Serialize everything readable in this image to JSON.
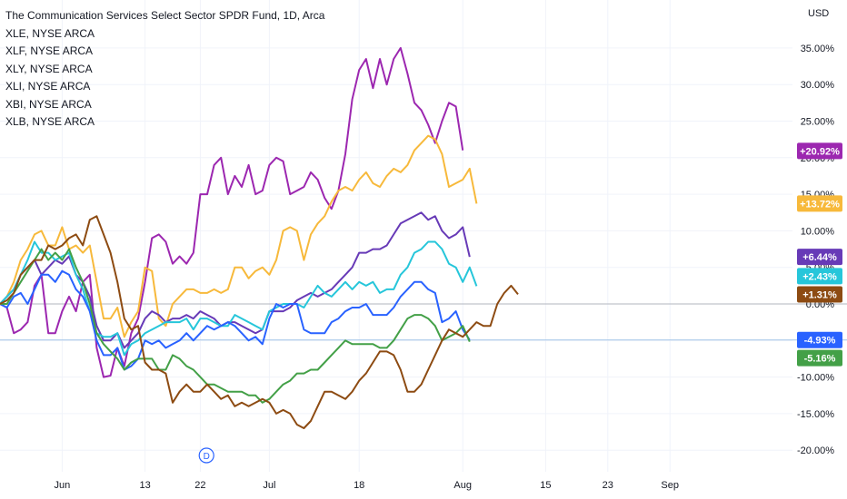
{
  "chart_data": {
    "type": "line",
    "title": "The Communication Services Select Sector SPDR Fund, 1D, Arca",
    "comparisons": [
      "XLE, NYSE ARCA",
      "XLF, NYSE ARCA",
      "XLY, NYSE ARCA",
      "XLI, NYSE ARCA",
      "XBI, NYSE ARCA",
      "XLB, NYSE ARCA"
    ],
    "currency": "USD",
    "y_ticks": [
      "35.00%",
      "30.00%",
      "25.00%",
      "20.00%",
      "15.00%",
      "10.00%",
      "5.00%",
      "0.00%",
      "-5.00%",
      "-10.00%",
      "-15.00%",
      "-20.00%"
    ],
    "y_tick_values": [
      35,
      30,
      25,
      20,
      15,
      10,
      5,
      0,
      -5,
      -10,
      -15,
      -20
    ],
    "ylim": [
      -22,
      38
    ],
    "x_ticks": [
      "Jun",
      "13",
      "22",
      "Jul",
      "18",
      "Aug",
      "15",
      "23",
      "Sep"
    ],
    "x_tick_index": [
      9,
      21,
      29,
      39,
      52,
      67,
      79,
      88,
      97
    ],
    "x_range": [
      0,
      113
    ],
    "event_marker": "D",
    "event_index": 27,
    "colors": {
      "grid": "#f0f3fa",
      "zero_line": "#b2b5be",
      "ref_line": "#9fc3e7"
    },
    "series": [
      {
        "color": "#9c27b0",
        "badge": "+20.92%",
        "last": 20.92,
        "values": [
          0,
          -0.5,
          -4,
          -3.5,
          -2.5,
          2.5,
          4,
          -4,
          -4,
          -1,
          1,
          -1,
          3,
          4,
          -6,
          -10,
          -9.8,
          -6,
          -8.5,
          -4,
          -2,
          3,
          9,
          9.5,
          8.5,
          5.5,
          6.5,
          5.5,
          7,
          15,
          15,
          19,
          20,
          15,
          17.5,
          16,
          19,
          15,
          15.5,
          19,
          20,
          19.5,
          15,
          15.5,
          16,
          18,
          17,
          14.5,
          13,
          15.5,
          20.5,
          28,
          32,
          33.5,
          29.5,
          33.5,
          30,
          33.5,
          35,
          31.5,
          27.5,
          26.5,
          24.5,
          22,
          25,
          27.5,
          27,
          21
        ]
      },
      {
        "color": "#f7b93b",
        "badge": "+13.72%",
        "last": 13.72,
        "values": [
          0,
          1,
          3,
          6,
          7.5,
          9.5,
          10,
          8,
          8,
          10.5,
          7.5,
          8,
          7,
          8,
          3,
          -2,
          -2,
          -0.5,
          -4.5,
          -2.5,
          -1,
          5,
          4.5,
          -2,
          -3,
          0,
          1,
          2,
          2,
          1.5,
          1.5,
          2,
          1.5,
          2,
          5,
          5,
          3.5,
          4.5,
          5,
          4,
          6,
          10,
          10.5,
          10,
          6,
          9.5,
          11,
          12,
          14,
          15.5,
          16,
          15.5,
          17,
          18,
          16.5,
          16,
          17.5,
          18.5,
          18,
          19,
          21,
          22,
          23,
          22.5,
          20.5,
          16,
          16.5,
          17,
          18.5,
          13.72
        ]
      },
      {
        "color": "#673ab7",
        "badge": "+6.44%",
        "last": 6.44,
        "values": [
          0,
          1,
          2,
          4,
          5,
          6,
          4,
          5,
          6,
          5.5,
          6.5,
          4,
          3,
          1,
          -3,
          -5,
          -5,
          -4,
          -6,
          -5,
          -4,
          -2,
          -1,
          -1.5,
          -2.5,
          -2,
          -2,
          -1.5,
          -2,
          -1,
          -1.5,
          -2,
          -3,
          -2.5,
          -2.5,
          -3,
          -3.5,
          -4,
          -3.5,
          -1,
          -1,
          -1,
          -0.5,
          0.5,
          1,
          1.5,
          1,
          1.5,
          2,
          3,
          4,
          5,
          7,
          7,
          7.5,
          7.5,
          8,
          9.5,
          11,
          11.5,
          12,
          12.5,
          11.5,
          12,
          10,
          9,
          9.5,
          10.5,
          6.44
        ]
      },
      {
        "color": "#26c6da",
        "badge": "+2.43%",
        "last": 2.43,
        "values": [
          0,
          1,
          2,
          4,
          6,
          8.5,
          7,
          7,
          6,
          6.5,
          7,
          4,
          2,
          -1,
          -4,
          -4.5,
          -4.5,
          -4,
          -7,
          -5.5,
          -5,
          -4,
          -3.5,
          -3,
          -2.5,
          -2.5,
          -2.5,
          -2,
          -3.5,
          -2,
          -2,
          -2.5,
          -3,
          -3,
          -1.5,
          -2,
          -2.5,
          -3,
          -3.5,
          -1,
          -0.5,
          0,
          0,
          0,
          -0.5,
          1,
          2.5,
          1.5,
          1,
          2,
          3,
          2,
          3,
          2.5,
          3,
          1.5,
          2,
          2,
          4,
          5,
          7,
          7.5,
          8.5,
          8.5,
          7.5,
          5.5,
          5,
          3,
          5,
          2.43
        ]
      },
      {
        "color": "#2962ff",
        "badge": "-4.93%",
        "last": -4.93,
        "values": [
          0,
          -0.5,
          1,
          1.5,
          0,
          2,
          4,
          4,
          3,
          4.5,
          4,
          2,
          1,
          -1,
          -5,
          -7,
          -7,
          -6,
          -9,
          -8.5,
          -7.5,
          -5,
          -5.5,
          -5,
          -6,
          -5.5,
          -5,
          -4,
          -5,
          -4,
          -3,
          -3.5,
          -3,
          -2.5,
          -3,
          -4,
          -5,
          -4.5,
          -5.5,
          -2,
          0,
          -0.5,
          0,
          0,
          -3.5,
          -4,
          -4,
          -4,
          -2.5,
          -2,
          -1,
          -0.5,
          -0.5,
          0,
          -1.5,
          -1.5,
          -1.5,
          -0.5,
          1,
          2,
          3,
          3,
          2,
          1.5,
          -2.5,
          -2,
          -1,
          -3.5,
          -4.93
        ]
      },
      {
        "color": "#43a047",
        "badge": "-5.16%",
        "last": -5.16,
        "values": [
          0,
          0,
          1.5,
          3,
          4.5,
          6,
          7.5,
          6,
          7,
          6,
          7.5,
          5,
          3,
          0,
          -4,
          -5.5,
          -6.5,
          -7.5,
          -9,
          -8,
          -7.5,
          -7.5,
          -7.5,
          -9,
          -9,
          -7,
          -7.5,
          -8.5,
          -9,
          -10,
          -11,
          -11,
          -11.5,
          -12,
          -12,
          -12,
          -12.5,
          -12.5,
          -13.5,
          -13,
          -12,
          -11,
          -10.5,
          -9.5,
          -9.5,
          -9,
          -9,
          -8,
          -7,
          -6,
          -5,
          -5.5,
          -5.5,
          -5.5,
          -5.5,
          -6,
          -6,
          -5,
          -3.5,
          -2,
          -1.5,
          -1.5,
          -2,
          -3,
          -5,
          -4.5,
          -4,
          -3,
          -5.16
        ]
      },
      {
        "color": "#8d4b12",
        "badge": "+1.31%",
        "last": 1.31,
        "values": [
          0,
          0.5,
          1.5,
          4,
          5,
          6,
          6,
          8,
          7.5,
          8,
          9,
          9.5,
          8,
          11.5,
          12,
          9.5,
          7,
          3,
          -2,
          -3.5,
          -3,
          -8,
          -9,
          -9,
          -9.5,
          -13.5,
          -12,
          -11,
          -12,
          -12,
          -11,
          -12,
          -13,
          -12.5,
          -14,
          -13.5,
          -14,
          -13.5,
          -13,
          -13.5,
          -15,
          -14.5,
          -15,
          -16.5,
          -17,
          -16,
          -14,
          -12,
          -12,
          -12.5,
          -13,
          -12,
          -10.5,
          -9.5,
          -8,
          -6.5,
          -6.5,
          -7,
          -9,
          -12,
          -12,
          -11,
          -9,
          -7,
          -5,
          -3.5,
          -4,
          -4.5,
          -3.5,
          -2.5,
          -3,
          -3,
          0,
          1.5,
          2.5,
          1.31
        ]
      }
    ],
    "badges_display": [
      {
        "text": "+20.92%",
        "color": "#9c27b0",
        "value": 20.92
      },
      {
        "text": "+13.72%",
        "color": "#f7b93b",
        "value": 13.72
      },
      {
        "text": "+6.44%",
        "color": "#673ab7",
        "value": 6.44
      },
      {
        "text": "+2.43%",
        "color": "#26c6da",
        "value": 2.43
      },
      {
        "text": "+1.31%",
        "color": "#8d4b12",
        "value": 1.31
      },
      {
        "text": "-4.93%",
        "color": "#2962ff",
        "value": -4.93
      },
      {
        "text": "-5.16%",
        "color": "#43a047",
        "value": -5.16
      }
    ]
  }
}
